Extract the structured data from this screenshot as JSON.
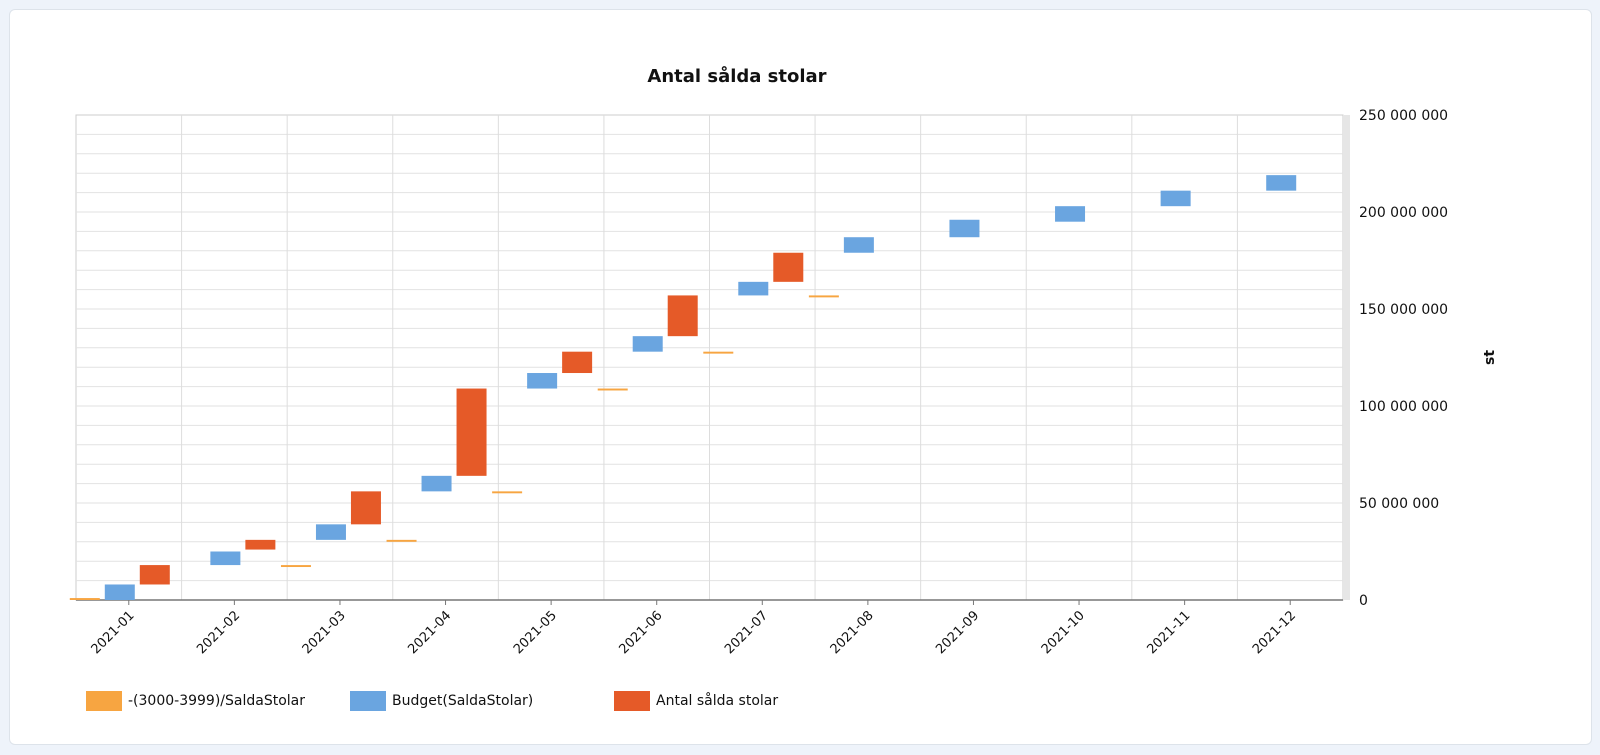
{
  "chart_data": {
    "type": "waterfall",
    "title": "Antal sålda stolar",
    "ylabel": "st",
    "xlabel": "",
    "ylim": [
      0,
      250000000
    ],
    "y_ticks": [
      "250 000 000",
      "200 000 000",
      "150 000 000",
      "100 000 000",
      "50 000 000",
      "0"
    ],
    "y_tick_values": [
      250000000,
      200000000,
      150000000,
      100000000,
      50000000,
      0
    ],
    "categories": [
      "2021-01",
      "2021-02",
      "2021-03",
      "2021-04",
      "2021-05",
      "2021-06",
      "2021-07",
      "2021-08",
      "2021-09",
      "2021-10",
      "2021-11",
      "2021-12"
    ],
    "grid": true,
    "legend_position": "bottom-left",
    "series": [
      {
        "name": "-(3000-3999)/SaldaStolar",
        "color": "#f7a541",
        "ranges": [
          [
            0,
            1000000
          ],
          null,
          [
            17000000,
            18000000
          ],
          [
            30000000,
            31000000
          ],
          [
            55000000,
            56000000
          ],
          [
            108000000,
            109000000
          ],
          [
            127000000,
            128000000
          ],
          [
            156000000,
            157000000
          ],
          null,
          null,
          null,
          null
        ]
      },
      {
        "name": "Budget(SaldaStolar)",
        "color": "#6aa5e0",
        "ranges": [
          [
            0,
            8000000
          ],
          [
            18000000,
            25000000
          ],
          [
            31000000,
            39000000
          ],
          [
            56000000,
            64000000
          ],
          [
            109000000,
            117000000
          ],
          [
            128000000,
            136000000
          ],
          [
            157000000,
            164000000
          ],
          [
            179000000,
            187000000
          ],
          [
            187000000,
            196000000
          ],
          [
            195000000,
            203000000
          ],
          [
            203000000,
            211000000
          ],
          [
            211000000,
            219000000
          ]
        ]
      },
      {
        "name": "Antal sålda stolar",
        "color": "#e55a28",
        "ranges": [
          [
            8000000,
            18000000
          ],
          [
            26000000,
            31000000
          ],
          [
            39000000,
            56000000
          ],
          [
            64000000,
            109000000
          ],
          [
            117000000,
            128000000
          ],
          [
            136000000,
            157000000
          ],
          [
            164000000,
            179000000
          ],
          null,
          null,
          null,
          null,
          null
        ]
      }
    ]
  }
}
